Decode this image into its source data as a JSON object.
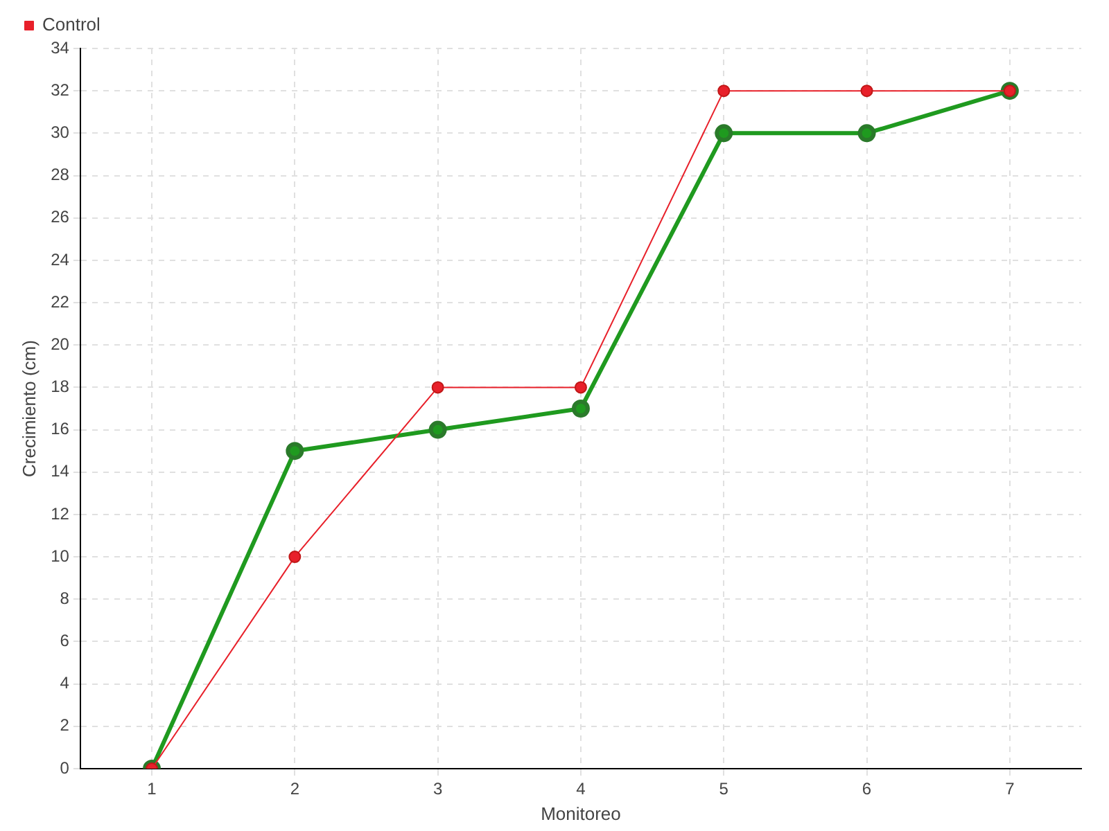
{
  "chart_data": {
    "type": "line",
    "xlabel": "Monitoreo",
    "ylabel": "Crecimiento (cm)",
    "categories": [
      "1",
      "2",
      "3",
      "4",
      "5",
      "6",
      "7"
    ],
    "series": [
      {
        "color": "#1f9a1f",
        "values": [
          0,
          15,
          16,
          17,
          30,
          30,
          32
        ]
      },
      {
        "name": "Control",
        "color": "#e8202a",
        "values": [
          0,
          10,
          18,
          18,
          32,
          32,
          32
        ]
      }
    ],
    "ylim": [
      0,
      34
    ],
    "yticks": [
      0,
      2,
      4,
      6,
      8,
      10,
      12,
      14,
      16,
      18,
      20,
      22,
      24,
      26,
      28,
      30,
      32,
      34
    ],
    "grid": true,
    "legend": "top left",
    "marker": "circle",
    "line_style": "solid"
  }
}
